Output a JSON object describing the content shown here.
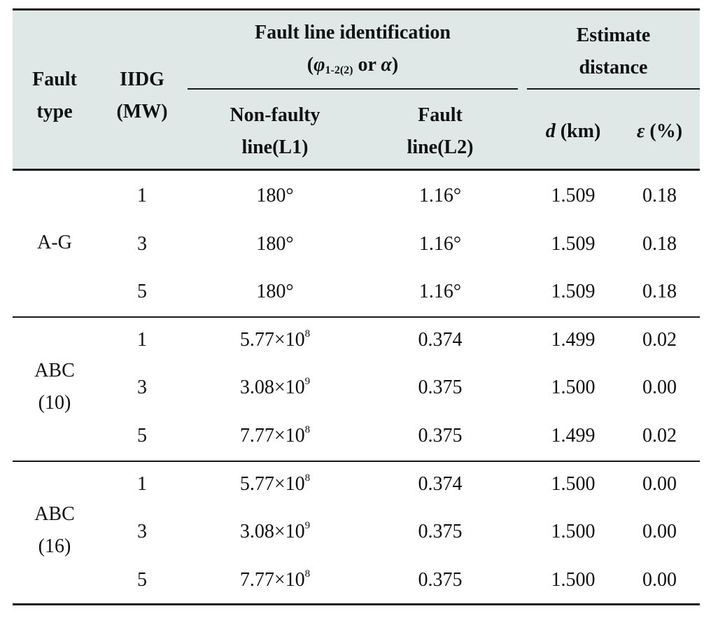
{
  "header": {
    "fault_type": [
      "Fault",
      "type"
    ],
    "iidg": [
      "IIDG",
      "(MW)"
    ],
    "fault_line_id": {
      "line1": "Fault line identification",
      "open_paren": "(",
      "phi": "φ",
      "phi_sub": "1-2(2)",
      "or": " or ",
      "alpha": "α",
      "close_paren": ")"
    },
    "estimate": [
      "Estimate",
      "distance"
    ],
    "non_faulty": [
      "Non-faulty",
      "line(L1)"
    ],
    "fault_line": [
      "Fault",
      "line(L2)"
    ],
    "d_symbol": "d",
    "d_unit": " (km)",
    "eps_symbol": "ε",
    "eps_unit": " (%)"
  },
  "groups": [
    {
      "label": [
        "A-G"
      ],
      "rows": [
        {
          "iidg": "1",
          "l1": {
            "mantissa": "180°",
            "exp": ""
          },
          "l2": "1.16°",
          "d": "1.509",
          "eps": "0.18"
        },
        {
          "iidg": "3",
          "l1": {
            "mantissa": "180°",
            "exp": ""
          },
          "l2": "1.16°",
          "d": "1.509",
          "eps": "0.18"
        },
        {
          "iidg": "5",
          "l1": {
            "mantissa": "180°",
            "exp": ""
          },
          "l2": "1.16°",
          "d": "1.509",
          "eps": "0.18"
        }
      ]
    },
    {
      "label": [
        "ABC",
        "(10)"
      ],
      "rows": [
        {
          "iidg": "1",
          "l1": {
            "mantissa": "5.77×10",
            "exp": "8"
          },
          "l2": "0.374",
          "d": "1.499",
          "eps": "0.02"
        },
        {
          "iidg": "3",
          "l1": {
            "mantissa": "3.08×10",
            "exp": "9"
          },
          "l2": "0.375",
          "d": "1.500",
          "eps": "0.00"
        },
        {
          "iidg": "5",
          "l1": {
            "mantissa": "7.77×10",
            "exp": "8"
          },
          "l2": "0.375",
          "d": "1.499",
          "eps": "0.02"
        }
      ]
    },
    {
      "label": [
        "ABC",
        "(16)"
      ],
      "rows": [
        {
          "iidg": "1",
          "l1": {
            "mantissa": "5.77×10",
            "exp": "8"
          },
          "l2": "0.374",
          "d": "1.500",
          "eps": "0.00"
        },
        {
          "iidg": "3",
          "l1": {
            "mantissa": "3.08×10",
            "exp": "9"
          },
          "l2": "0.375",
          "d": "1.500",
          "eps": "0.00"
        },
        {
          "iidg": "5",
          "l1": {
            "mantissa": "7.77×10",
            "exp": "8"
          },
          "l2": "0.375",
          "d": "1.500",
          "eps": "0.00"
        }
      ]
    }
  ]
}
